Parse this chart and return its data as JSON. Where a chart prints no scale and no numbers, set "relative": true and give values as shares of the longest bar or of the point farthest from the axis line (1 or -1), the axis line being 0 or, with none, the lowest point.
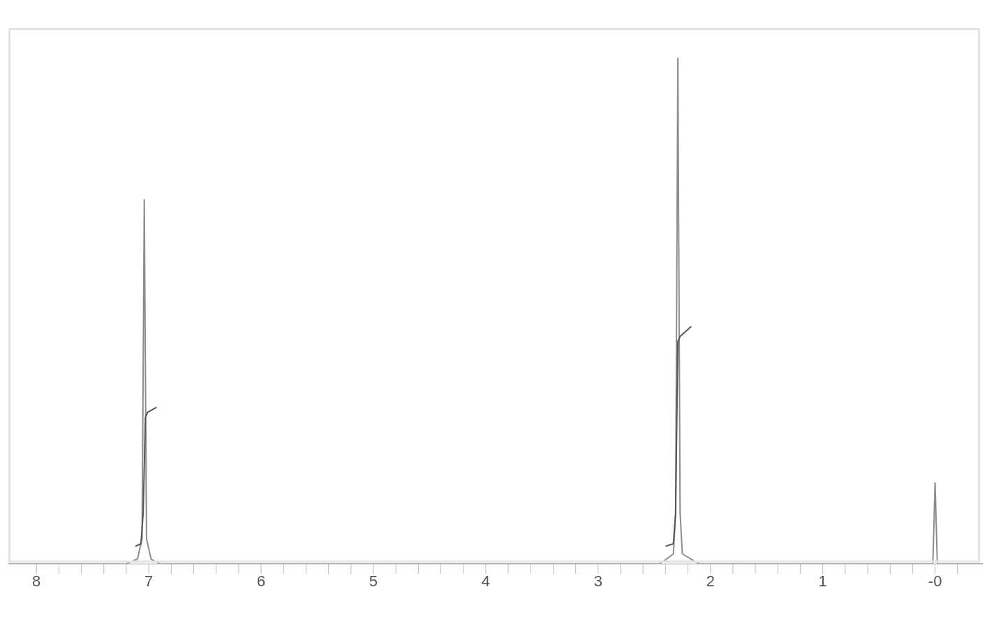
{
  "chart_data": {
    "type": "line",
    "relative": true,
    "marker": "none",
    "line_style": "solid",
    "xlim": [
      8.25,
      -0.425
    ],
    "xticks": [
      8,
      {
        "value": 7.8,
        "label": null
      },
      {
        "value": 7.6,
        "label": null
      },
      {
        "value": 7.4,
        "label": null
      },
      {
        "value": 7.2,
        "label": null
      },
      7,
      {
        "value": 6.8,
        "label": null
      },
      {
        "value": 6.6,
        "label": null
      },
      {
        "value": 6.4,
        "label": null
      },
      {
        "value": 6.2,
        "label": null
      },
      6,
      {
        "value": 5.8,
        "label": null
      },
      {
        "value": 5.6,
        "label": null
      },
      {
        "value": 5.4,
        "label": null
      },
      {
        "value": 5.2,
        "label": null
      },
      5,
      {
        "value": 4.8,
        "label": null
      },
      {
        "value": 4.6,
        "label": null
      },
      {
        "value": 4.4,
        "label": null
      },
      {
        "value": 4.2,
        "label": null
      },
      4,
      {
        "value": 3.8,
        "label": null
      },
      {
        "value": 3.6,
        "label": null
      },
      {
        "value": 3.4,
        "label": null
      },
      {
        "value": 3.2,
        "label": null
      },
      3,
      {
        "value": 2.8,
        "label": null
      },
      {
        "value": 2.6,
        "label": null
      },
      {
        "value": 2.4,
        "label": null
      },
      {
        "value": 2.2,
        "label": null
      },
      2,
      {
        "value": 1.8,
        "label": null
      },
      {
        "value": 1.6,
        "label": null
      },
      {
        "value": 1.4,
        "label": null
      },
      {
        "value": 1.2,
        "label": null
      },
      1,
      {
        "value": 0.8,
        "label": null
      },
      {
        "value": 0.6,
        "label": null
      },
      {
        "value": 0.4,
        "label": null
      },
      {
        "value": 0.2,
        "label": null
      },
      {
        "value": 0,
        "label": "-0"
      },
      {
        "value": -0.2,
        "label": null
      }
    ],
    "series": [
      {
        "color": "#8c8c8c",
        "x": [
          8.25,
          7.2,
          7.1,
          7.06,
          7.04,
          7.02,
          6.98,
          6.9,
          2.45,
          2.33,
          2.31,
          2.29,
          2.27,
          2.25,
          2.1,
          0.02,
          0,
          -0.02,
          -0.425
        ],
        "values": [
          0,
          0,
          0.01,
          0.05,
          0.72,
          0.05,
          0.01,
          0,
          0,
          0.02,
          0.1,
          1,
          0.1,
          0.02,
          0,
          0,
          0.16,
          0,
          0
        ]
      },
      {
        "color": "#555555",
        "x": [
          7.12,
          7.07,
          7.05,
          7.03,
          7.01,
          6.93
        ],
        "values": [
          0.035,
          0.04,
          0.1,
          0.29,
          0.3,
          0.31
        ]
      },
      {
        "color": "#555555",
        "x": [
          2.4,
          2.33,
          2.31,
          2.29,
          2.27,
          2.17
        ],
        "values": [
          0.035,
          0.04,
          0.1,
          0.44,
          0.45,
          0.47
        ]
      }
    ]
  }
}
